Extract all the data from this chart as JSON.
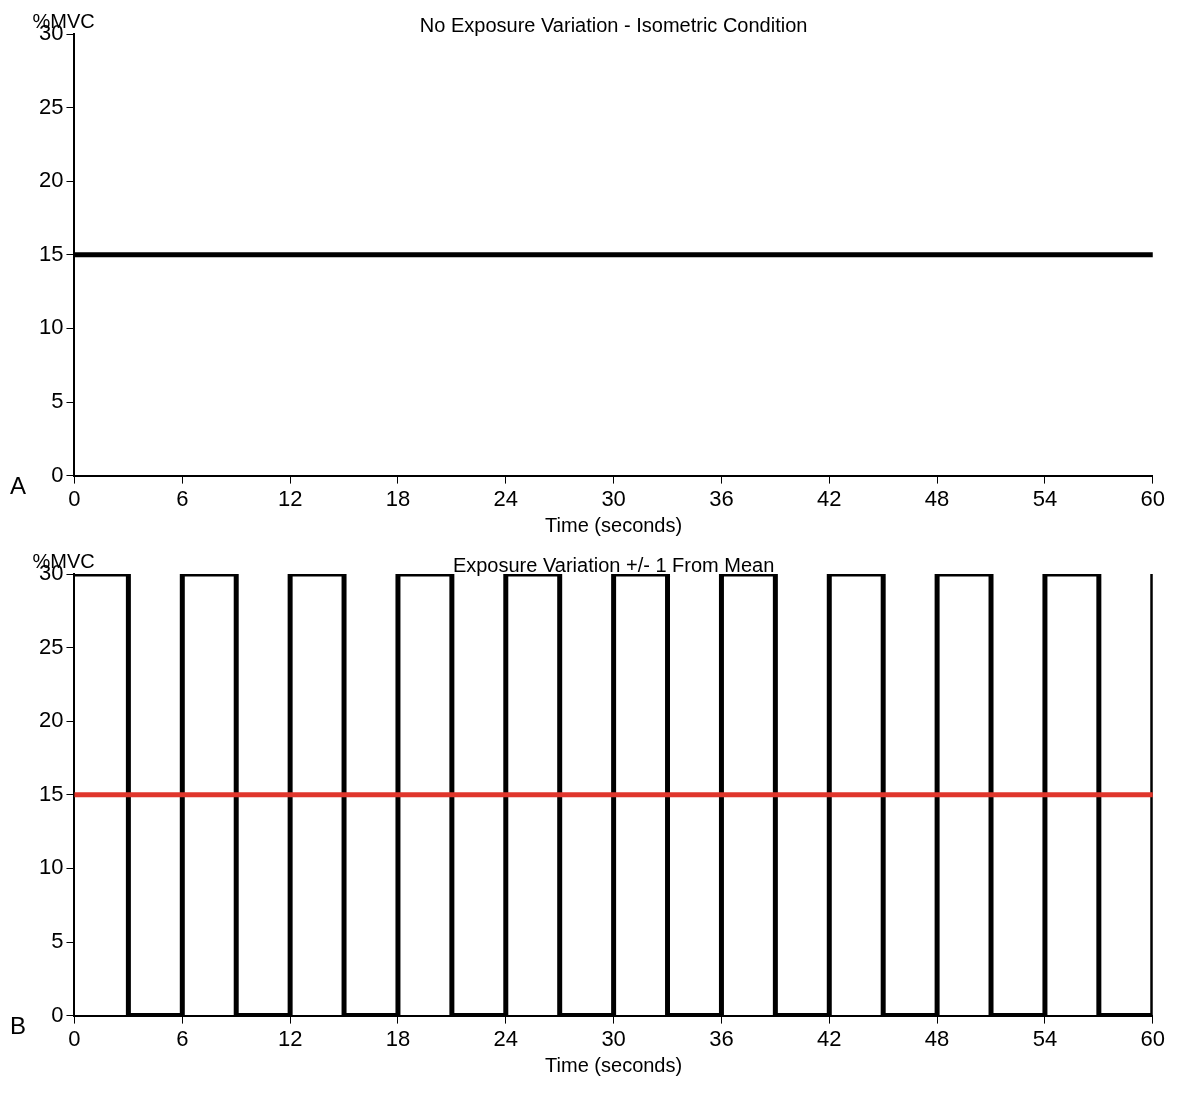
{
  "chart_data": [
    {
      "type": "line",
      "title": "No Exposure Variation - Isometric Condition",
      "xlabel": "Time (seconds)",
      "ylabel": "%MVC",
      "annotations": [
        "A"
      ],
      "series": [
        {
          "color": "#000000",
          "x": [
            0,
            60
          ],
          "values": [
            15,
            15
          ]
        }
      ],
      "xlim": [
        0,
        60
      ],
      "xticks": [
        0,
        6,
        12,
        18,
        24,
        30,
        36,
        42,
        48,
        54,
        60
      ],
      "ylim": [
        0,
        30
      ],
      "yticks": [
        0,
        5,
        10,
        15,
        20,
        25,
        30
      ],
      "grid": false,
      "legend": false,
      "marker": "none",
      "line_style": "solid"
    },
    {
      "type": "line",
      "title": "Exposure Variation +/- 1 From Mean",
      "xlabel": "Time (seconds)",
      "ylabel": "%MVC",
      "annotations": [
        "B"
      ],
      "series": [
        {
          "color": "#000000",
          "x": [
            0,
            3,
            3,
            6,
            6,
            9,
            9,
            12,
            12,
            15,
            15,
            18,
            18,
            21,
            21,
            24,
            24,
            27,
            27,
            30,
            30,
            33,
            33,
            36,
            36,
            39,
            39,
            42,
            42,
            45,
            45,
            48,
            48,
            51,
            51,
            54,
            54,
            57,
            57,
            60,
            60
          ],
          "values": [
            30,
            30,
            0,
            0,
            30,
            30,
            0,
            0,
            30,
            30,
            0,
            0,
            30,
            30,
            0,
            0,
            30,
            30,
            0,
            0,
            30,
            30,
            0,
            0,
            30,
            30,
            0,
            0,
            30,
            30,
            0,
            0,
            30,
            30,
            0,
            0,
            30,
            30,
            0,
            0,
            30
          ]
        }
      ],
      "ref_lines": [
        {
          "axis": "y",
          "value": 15,
          "color": "#e0362c"
        }
      ],
      "xlim": [
        0,
        60
      ],
      "xticks": [
        0,
        6,
        12,
        18,
        24,
        30,
        36,
        42,
        48,
        54,
        60
      ],
      "ylim": [
        0,
        30
      ],
      "yticks": [
        0,
        5,
        10,
        15,
        20,
        25,
        30
      ],
      "grid": false,
      "legend": false,
      "marker": "none",
      "line_style": "solid"
    }
  ]
}
